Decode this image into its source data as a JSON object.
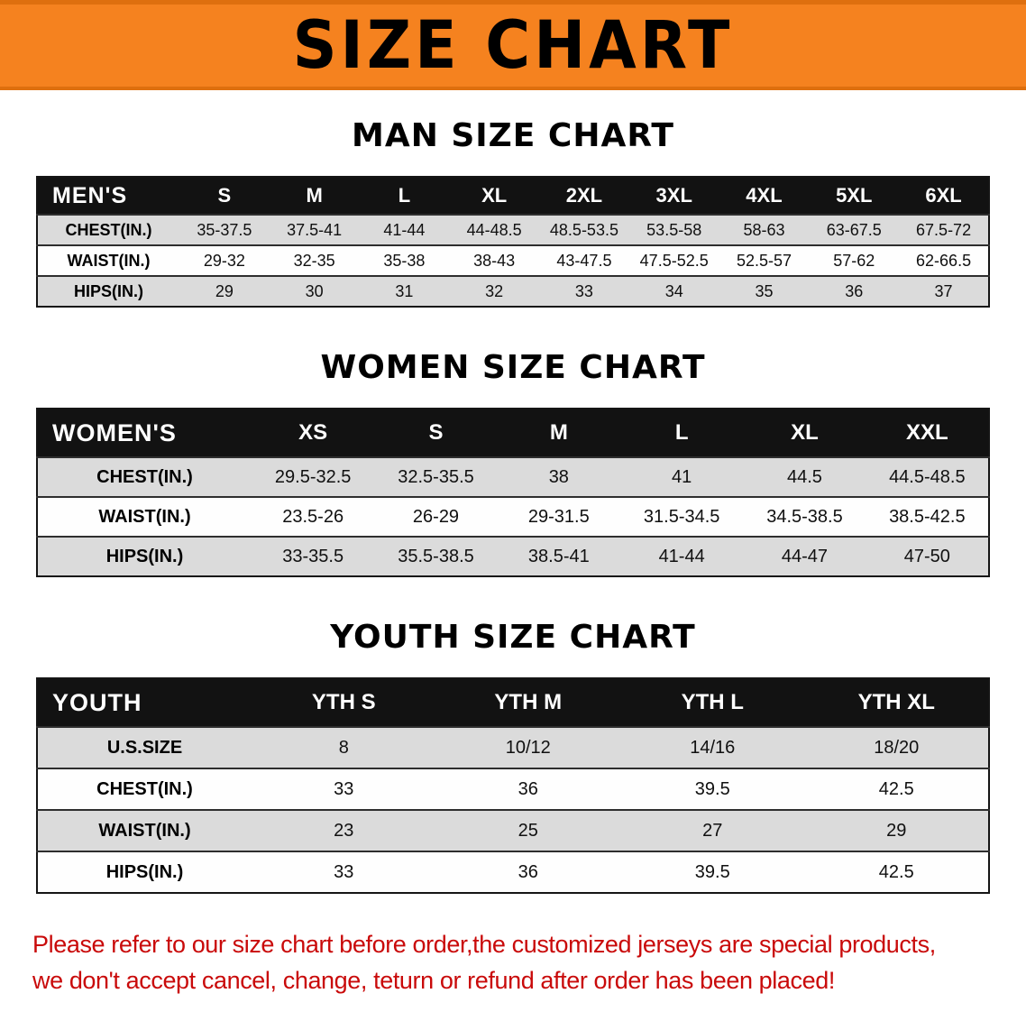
{
  "banner": {
    "title": "SIZE CHART"
  },
  "colors": {
    "banner_bg": "#F5821F",
    "banner_edge": "#DE6F0E",
    "header_bg": "#121212",
    "header_text": "#FFFFFF",
    "stripe_row": "#DBDBDB",
    "plain_row": "#FEFEFE",
    "disclaimer": "#C90A0A"
  },
  "sections": [
    {
      "id": "men",
      "heading": "MAN SIZE CHART",
      "table": {
        "label": "MEN'S",
        "columns": [
          "S",
          "M",
          "L",
          "XL",
          "2XL",
          "3XL",
          "4XL",
          "5XL",
          "6XL"
        ],
        "rows": [
          {
            "label": "CHEST(IN.)",
            "values": [
              "35-37.5",
              "37.5-41",
              "41-44",
              "44-48.5",
              "48.5-53.5",
              "53.5-58",
              "58-63",
              "63-67.5",
              "67.5-72"
            ]
          },
          {
            "label": "WAIST(IN.)",
            "values": [
              "29-32",
              "32-35",
              "35-38",
              "38-43",
              "43-47.5",
              "47.5-52.5",
              "52.5-57",
              "57-62",
              "62-66.5"
            ]
          },
          {
            "label": "HIPS(IN.)",
            "values": [
              "29",
              "30",
              "31",
              "32",
              "33",
              "34",
              "35",
              "36",
              "37"
            ]
          }
        ]
      }
    },
    {
      "id": "women",
      "heading": "WOMEN SIZE CHART",
      "table": {
        "label": "WOMEN'S",
        "columns": [
          "XS",
          "S",
          "M",
          "L",
          "XL",
          "XXL"
        ],
        "rows": [
          {
            "label": "CHEST(IN.)",
            "values": [
              "29.5-32.5",
              "32.5-35.5",
              "38",
              "41",
              "44.5",
              "44.5-48.5"
            ]
          },
          {
            "label": "WAIST(IN.)",
            "values": [
              "23.5-26",
              "26-29",
              "29-31.5",
              "31.5-34.5",
              "34.5-38.5",
              "38.5-42.5"
            ]
          },
          {
            "label": "HIPS(IN.)",
            "values": [
              "33-35.5",
              "35.5-38.5",
              "38.5-41",
              "41-44",
              "44-47",
              "47-50"
            ]
          }
        ]
      }
    },
    {
      "id": "youth",
      "heading": "YOUTH SIZE CHART",
      "table": {
        "label": "YOUTH",
        "columns": [
          "YTH S",
          "YTH M",
          "YTH L",
          "YTH XL"
        ],
        "rows": [
          {
            "label": "U.S.SIZE",
            "values": [
              "8",
              "10/12",
              "14/16",
              "18/20"
            ]
          },
          {
            "label": "CHEST(IN.)",
            "values": [
              "33",
              "36",
              "39.5",
              "42.5"
            ]
          },
          {
            "label": "WAIST(IN.)",
            "values": [
              "23",
              "25",
              "27",
              "29"
            ]
          },
          {
            "label": "HIPS(IN.)",
            "values": [
              "33",
              "36",
              "39.5",
              "42.5"
            ]
          }
        ]
      }
    }
  ],
  "footer": {
    "line1": "Please refer to our size chart before order,the customized jerseys are special products,",
    "line2": "we don't accept cancel, change, teturn or refund after order has been placed!"
  }
}
